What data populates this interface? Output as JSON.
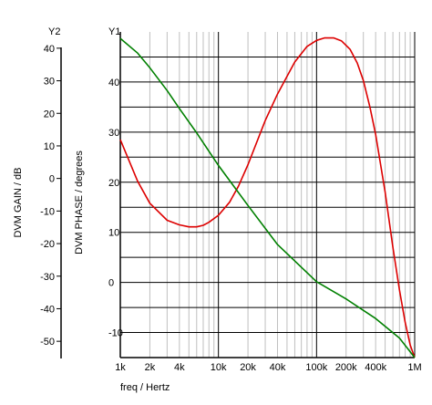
{
  "chart_data": {
    "type": "line",
    "x_scale": "log",
    "xlabel": "freq / Hertz",
    "xlim": [
      1000,
      1000000
    ],
    "xticks": [
      {
        "value": 1000,
        "label": "1k"
      },
      {
        "value": 2000,
        "label": "2k"
      },
      {
        "value": 4000,
        "label": "4k"
      },
      {
        "value": 10000,
        "label": "10k"
      },
      {
        "value": 20000,
        "label": "20k"
      },
      {
        "value": 40000,
        "label": "40k"
      },
      {
        "value": 100000,
        "label": "100k"
      },
      {
        "value": 200000,
        "label": "200k"
      },
      {
        "value": 400000,
        "label": "400k"
      },
      {
        "value": 1000000,
        "label": "1M"
      }
    ],
    "y1": {
      "title": "Y1",
      "label": "DVM PHASE / degrees",
      "ylim": [
        -15,
        50
      ],
      "ticks": [
        {
          "value": 40,
          "label": "40"
        },
        {
          "value": 30,
          "label": "30"
        },
        {
          "value": 20,
          "label": "20"
        },
        {
          "value": 10,
          "label": "10"
        },
        {
          "value": 0,
          "label": "0"
        },
        {
          "value": -10,
          "label": "-10"
        }
      ]
    },
    "y2": {
      "title": "Y2",
      "label": "DVM GAIN / dB",
      "ylim": [
        -55,
        45
      ],
      "ticks": [
        {
          "value": 40,
          "label": "40"
        },
        {
          "value": 30,
          "label": "30"
        },
        {
          "value": 20,
          "label": "20"
        },
        {
          "value": 10,
          "label": "10"
        },
        {
          "value": 0,
          "label": "0"
        },
        {
          "value": -10,
          "label": "-10"
        },
        {
          "value": -20,
          "label": "-20"
        },
        {
          "value": -30,
          "label": "-30"
        },
        {
          "value": -40,
          "label": "-40"
        },
        {
          "value": -50,
          "label": "-50"
        }
      ]
    },
    "grid": true,
    "series": [
      {
        "axis": "y1",
        "color": "#dd0000",
        "x": [
          1000,
          1500,
          2000,
          3000,
          4000,
          5000,
          6000,
          7000,
          8000,
          10000,
          13000,
          16000,
          20000,
          30000,
          40000,
          60000,
          80000,
          100000,
          120000,
          150000,
          180000,
          220000,
          260000,
          300000,
          350000,
          400000,
          500000,
          600000,
          700000,
          800000,
          900000,
          1000000
        ],
        "y": [
          28.5,
          20.2,
          15.8,
          12.4,
          11.5,
          11.1,
          11.1,
          11.4,
          12.0,
          13.4,
          16.0,
          19.2,
          23.5,
          32.3,
          37.6,
          44.0,
          47.1,
          48.3,
          48.8,
          48.8,
          48.2,
          46.5,
          43.8,
          40.3,
          35.0,
          29.5,
          18.0,
          7.0,
          -1.5,
          -8.0,
          -12.5,
          -15.0
        ]
      },
      {
        "axis": "y2",
        "color": "#008000",
        "x": [
          1000,
          1500,
          2000,
          3000,
          4000,
          6000,
          10000,
          20000,
          40000,
          100000,
          200000,
          400000,
          700000,
          1000000
        ],
        "y": [
          43.0,
          38.5,
          34.0,
          27.0,
          21.5,
          14.0,
          4.0,
          -8.3,
          -20.3,
          -31.7,
          -37.0,
          -43.0,
          -49.0,
          -55.0
        ]
      }
    ]
  }
}
